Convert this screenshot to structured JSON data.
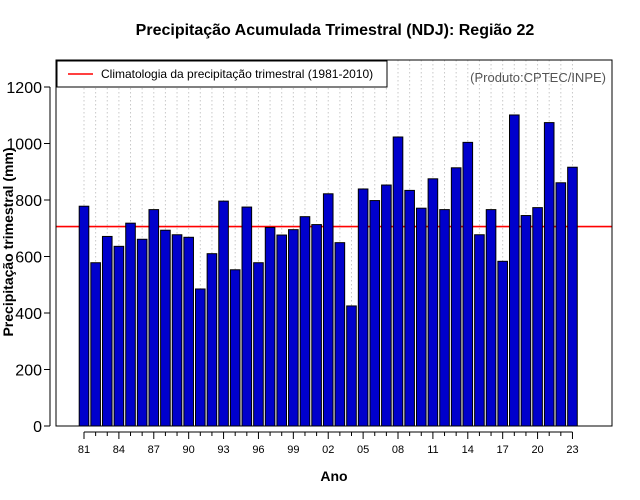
{
  "chart_data": {
    "type": "bar",
    "title": "Precipitação Acumulada Trimestral (NDJ): Região 22",
    "xlabel": "Ano",
    "ylabel": "Precipitação trimestral (mm)",
    "ylim": [
      0,
      1300
    ],
    "yticks": [
      0,
      200,
      400,
      600,
      800,
      1000,
      1200
    ],
    "categories": [
      "81",
      "82",
      "83",
      "84",
      "85",
      "86",
      "87",
      "88",
      "89",
      "90",
      "91",
      "92",
      "93",
      "94",
      "95",
      "96",
      "97",
      "98",
      "99",
      "00",
      "01",
      "02",
      "03",
      "04",
      "05",
      "06",
      "07",
      "08",
      "09",
      "10",
      "11",
      "12",
      "13",
      "14",
      "15",
      "16",
      "17",
      "18",
      "19",
      "20",
      "21",
      "22",
      "23"
    ],
    "xtick_labels": [
      "81",
      "84",
      "87",
      "90",
      "93",
      "96",
      "99",
      "02",
      "05",
      "08",
      "11",
      "14",
      "17",
      "20",
      "23"
    ],
    "values": [
      778,
      578,
      671,
      636,
      718,
      661,
      766,
      693,
      677,
      668,
      485,
      610,
      796,
      553,
      775,
      578,
      703,
      676,
      695,
      741,
      713,
      822,
      649,
      425,
      839,
      798,
      853,
      1023,
      834,
      771,
      875,
      766,
      914,
      1004,
      677,
      766,
      583,
      1101,
      745,
      773,
      1074,
      861,
      916
    ],
    "climatology": 706,
    "legend": "Climatologia da precipitação trimestral (1981-2010)",
    "credit": "(Produto:CPTEC/INPE)",
    "bar_color": "#0000cc",
    "line_color": "#ff0000",
    "grid": "vertical dotted"
  }
}
